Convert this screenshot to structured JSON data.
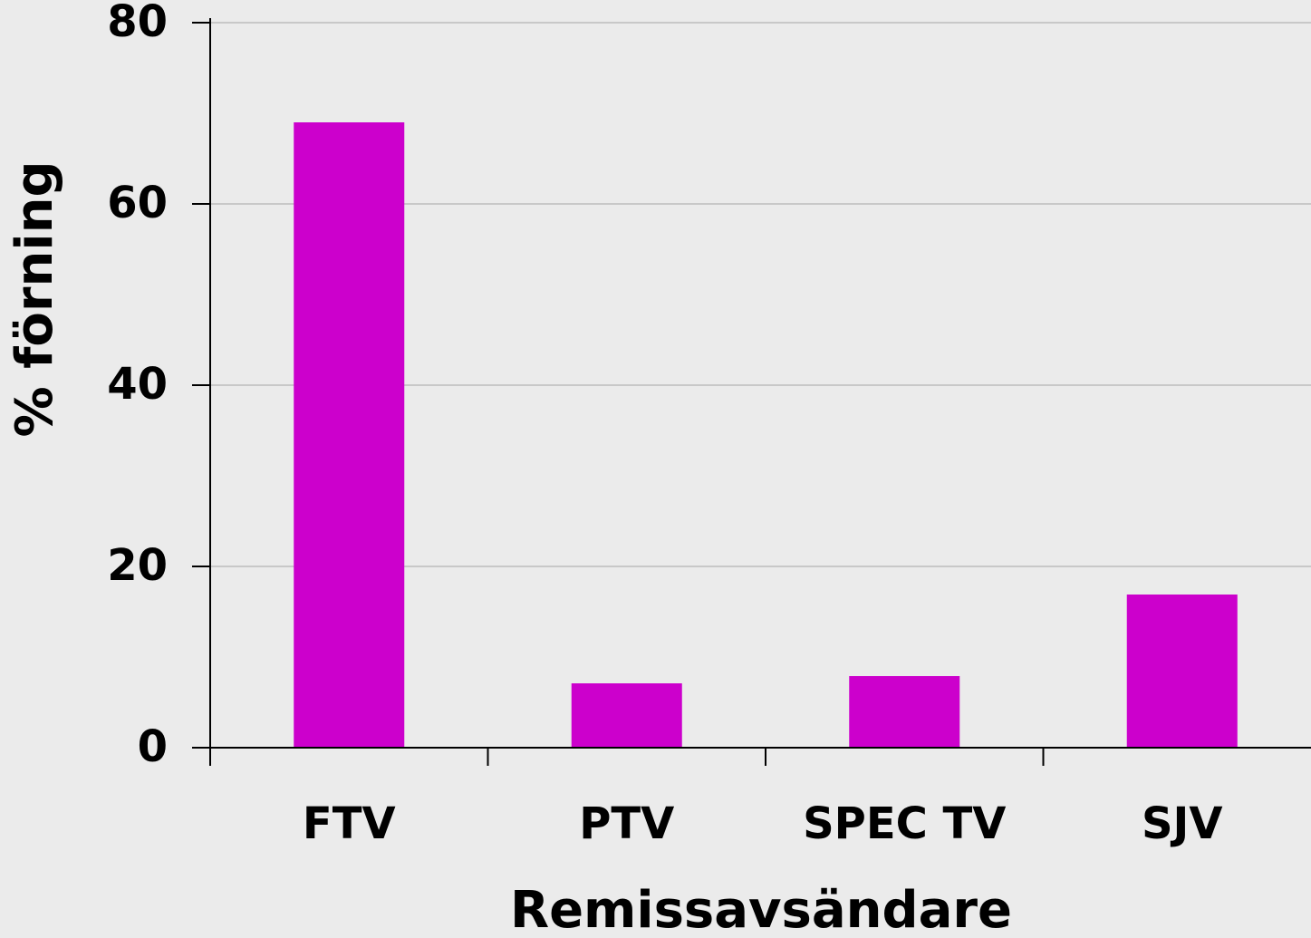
{
  "chart_data": {
    "type": "bar",
    "x_label": "Remissavsändare",
    "y_label": "% förning",
    "categories": [
      "FTV",
      "PTV",
      "SPEC TV",
      "SJV"
    ],
    "values": [
      69,
      7.1,
      7.9,
      16.9
    ],
    "color": "#cc00cc",
    "ylim": [
      0,
      80
    ],
    "yticks": [
      0,
      20,
      40,
      60,
      80
    ],
    "grid": true
  }
}
